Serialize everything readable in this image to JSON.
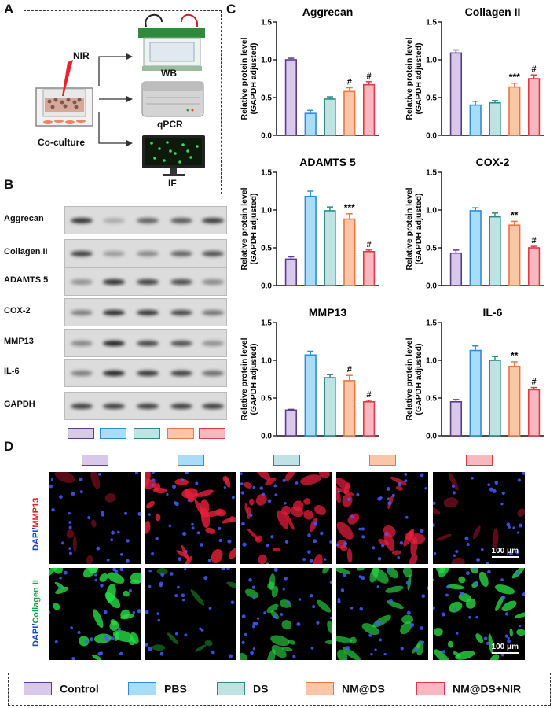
{
  "panel_labels": {
    "a": "A",
    "b": "B",
    "c": "C",
    "d": "D"
  },
  "panel_a": {
    "nir_label": "NIR",
    "coculture_label": "Co-culture",
    "wb_label": "WB",
    "qpcr_label": "qPCR",
    "if_label": "IF"
  },
  "panel_b": {
    "rows": [
      "Aggrecan",
      "Collagen II",
      "ADAMTS 5",
      "COX-2",
      "MMP13",
      "IL-6",
      "GAPDH"
    ],
    "intensity": [
      [
        0.9,
        0.25,
        0.65,
        0.7,
        0.85
      ],
      [
        0.85,
        0.35,
        0.45,
        0.65,
        0.75
      ],
      [
        0.4,
        0.95,
        0.85,
        0.8,
        0.45
      ],
      [
        0.5,
        0.95,
        0.9,
        0.8,
        0.55
      ],
      [
        0.45,
        1.0,
        0.8,
        0.75,
        0.4
      ],
      [
        0.5,
        1.0,
        0.9,
        0.85,
        0.6
      ],
      [
        0.85,
        0.85,
        0.85,
        0.85,
        0.85
      ]
    ]
  },
  "groups": [
    "Control",
    "PBS",
    "DS",
    "NM@DS",
    "NM@DS+NIR"
  ],
  "group_colors": {
    "fill": [
      "#d8c8ea",
      "#a8dcf8",
      "#bfe3e3",
      "#fbc6a8",
      "#f7b8c0"
    ],
    "stroke": [
      "#5b3d86",
      "#2a8fd8",
      "#2d8a86",
      "#e8783e",
      "#e03a4a"
    ]
  },
  "chart_data": [
    {
      "type": "bar",
      "title": "Aggrecan",
      "ylabel": "Relative protein level (GAPDH adjusted)",
      "ylim": [
        0,
        1.5
      ],
      "yticks": [
        "0.0",
        "0.5",
        "1.0",
        "1.5"
      ],
      "categories": [
        "Control",
        "PBS",
        "DS",
        "NM@DS",
        "NM@DS+NIR"
      ],
      "values": [
        1.0,
        0.29,
        0.48,
        0.58,
        0.67
      ],
      "errors": [
        0.02,
        0.04,
        0.03,
        0.05,
        0.04
      ],
      "annotations": [
        "",
        "",
        "",
        "#",
        "#"
      ]
    },
    {
      "type": "bar",
      "title": "Collagen II",
      "ylabel": "Relative protein level (GAPDH adjusted)",
      "ylim": [
        0,
        1.5
      ],
      "yticks": [
        "0.0",
        "0.5",
        "1.0",
        "1.5"
      ],
      "categories": [
        "Control",
        "PBS",
        "DS",
        "NM@DS",
        "NM@DS+NIR"
      ],
      "values": [
        1.09,
        0.4,
        0.43,
        0.64,
        0.75
      ],
      "errors": [
        0.04,
        0.05,
        0.03,
        0.05,
        0.05
      ],
      "annotations": [
        "",
        "",
        "",
        "***",
        "#"
      ]
    },
    {
      "type": "bar",
      "title": "ADAMTS 5",
      "ylabel": "Relative protein level (GAPDH adjusted)",
      "ylim": [
        0,
        1.5
      ],
      "yticks": [
        "0.0",
        "0.5",
        "1.0",
        "1.5"
      ],
      "categories": [
        "Control",
        "PBS",
        "DS",
        "NM@DS",
        "NM@DS+NIR"
      ],
      "values": [
        0.35,
        1.18,
        0.99,
        0.88,
        0.45
      ],
      "errors": [
        0.03,
        0.07,
        0.05,
        0.07,
        0.02
      ],
      "annotations": [
        "",
        "",
        "",
        "***",
        "#"
      ]
    },
    {
      "type": "bar",
      "title": "COX-2",
      "ylabel": "Relative protein level (GAPDH adjusted)",
      "ylim": [
        0,
        1.5
      ],
      "yticks": [
        "0.0",
        "0.5",
        "1.0",
        "1.5"
      ],
      "categories": [
        "Control",
        "PBS",
        "DS",
        "NM@DS",
        "NM@DS+NIR"
      ],
      "values": [
        0.43,
        0.99,
        0.91,
        0.8,
        0.5
      ],
      "errors": [
        0.04,
        0.04,
        0.05,
        0.05,
        0.02
      ],
      "annotations": [
        "",
        "",
        "",
        "**",
        "#"
      ]
    },
    {
      "type": "bar",
      "title": "MMP13",
      "ylabel": "Relative protein level (GAPDH adjusted)",
      "ylim": [
        0,
        1.5
      ],
      "yticks": [
        "0.0",
        "0.5",
        "1.0",
        "1.5"
      ],
      "categories": [
        "Control",
        "PBS",
        "DS",
        "NM@DS",
        "NM@DS+NIR"
      ],
      "values": [
        0.34,
        1.07,
        0.77,
        0.73,
        0.45
      ],
      "errors": [
        0.01,
        0.05,
        0.04,
        0.07,
        0.02
      ],
      "annotations": [
        "",
        "",
        "",
        "#",
        "#"
      ]
    },
    {
      "type": "bar",
      "title": "IL-6",
      "ylabel": "Relative protein level (GAPDH adjusted)",
      "ylim": [
        0,
        1.5
      ],
      "yticks": [
        "0.0",
        "0.5",
        "1.0",
        "1.5"
      ],
      "categories": [
        "Control",
        "PBS",
        "DS",
        "NM@DS",
        "NM@DS+NIR"
      ],
      "values": [
        0.45,
        1.13,
        1.0,
        0.92,
        0.61
      ],
      "errors": [
        0.03,
        0.06,
        0.05,
        0.06,
        0.03
      ],
      "annotations": [
        "",
        "",
        "",
        "**",
        "#"
      ]
    }
  ],
  "panel_d": {
    "row_labels": [
      {
        "a": "DAPI/",
        "b": "MMP13",
        "b_color": "#e0202a"
      },
      {
        "a": "DAPI/",
        "b": "Collagen II",
        "b_color": "#1aa34a"
      }
    ],
    "scale_bar": "100 μm",
    "red_intensity": [
      0.05,
      0.95,
      0.8,
      0.75,
      0.1
    ],
    "green_intensity": [
      0.9,
      0.05,
      0.55,
      0.6,
      0.85
    ]
  }
}
